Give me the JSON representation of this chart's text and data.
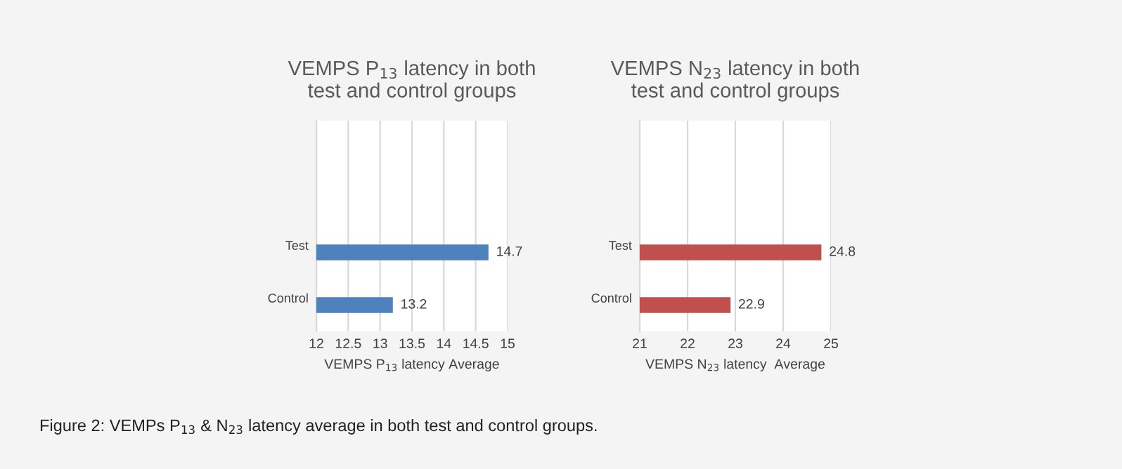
{
  "chart_data": [
    {
      "type": "bar",
      "orientation": "horizontal",
      "title": "VEMPS P$_{13}$ latency in both test and control groups",
      "xlabel": "VEMPS P$_{13}$ latency Average",
      "categories": [
        null,
        null,
        "Test",
        "Control"
      ],
      "values": [
        null,
        null,
        14.7,
        13.2
      ],
      "color": "#4f81bd",
      "xlim": [
        12,
        15
      ],
      "xticks": [
        12,
        12.5,
        13,
        13.5,
        14,
        14.5,
        15
      ],
      "grid": "x",
      "data_labels": true
    },
    {
      "type": "bar",
      "orientation": "horizontal",
      "title": "VEMPS N$_{23}$ latency in both test and control groups",
      "xlabel": "VEMPS N$_{23}$ latency  Average",
      "categories": [
        null,
        null,
        "Test",
        "Control"
      ],
      "values": [
        null,
        null,
        24.8,
        22.9
      ],
      "color": "#c0504d",
      "xlim": [
        21,
        25
      ],
      "xticks": [
        21,
        22,
        23,
        24,
        25
      ],
      "grid": "x",
      "data_labels": true,
      "annotations": [
        "Figure 2: VEMPs P$_{13}$ & N$_{23}$ latency average in both test and control groups."
      ]
    }
  ]
}
